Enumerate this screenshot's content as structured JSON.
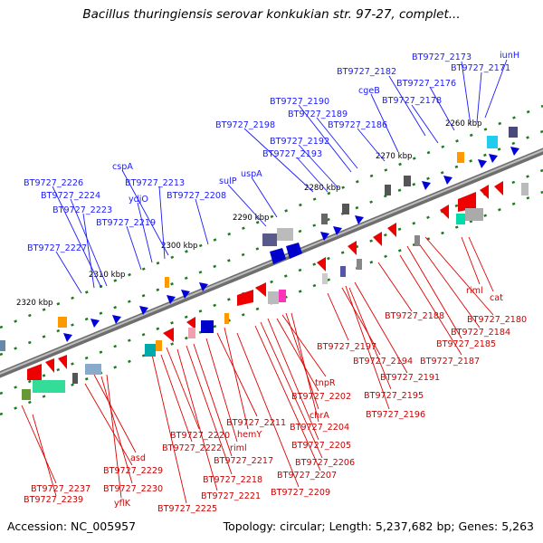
{
  "title": "Bacillus thuringiensis serovar konkukian str. 97-27, complet...",
  "accession": "Accession: NC_005957",
  "stats": "Topology: circular; Length: 5,237,682 bp; Genes: 5,263",
  "colors": {
    "upper_label": "#1a1aff",
    "lower_label": "#cc0000",
    "tick": "#1f7a1f",
    "backbone": "#7f7f7f"
  },
  "kbp_ticks": [
    "2320 kbp",
    "2310 kbp",
    "2300 kbp",
    "2290 kbp",
    "2280 kbp",
    "2270 kbp",
    "2260 kbp"
  ],
  "upper_labels": [
    "iunH",
    "BT9727_2173",
    "BT9727_2171",
    "BT9727_2182",
    "BT9727_2176",
    "cgeB",
    "BT9727_2178",
    "BT9727_2190",
    "BT9727_2189",
    "BT9727_2186",
    "BT9727_2198",
    "BT9727_2192",
    "BT9727_2193",
    "cspA",
    "uspA",
    "BT9727_2226",
    "BT9727_2213",
    "sulP",
    "BT9727_2224",
    "ydjO",
    "BT9727_2208",
    "BT9727_2223",
    "BT9727_2219",
    "BT9727_2227"
  ],
  "lower_labels": [
    "riml",
    "cat",
    "BT9727_2188",
    "BT9727_2180",
    "BT9727_2184",
    "BT9727_2185",
    "BT9727_2197",
    "BT9727_2187",
    "BT9727_2194",
    "BT9727_2191",
    "tnpR",
    "BT9727_2195",
    "BT9727_2202",
    "BT9727_2196",
    "chrA",
    "BT9727_2211",
    "BT9727_2204",
    "BT9727_2220",
    "hemY",
    "BT9727_2205",
    "BT9727_2222",
    "riml",
    "BT9727_2206",
    "asd",
    "BT9727_2217",
    "BT9727_2207",
    "BT9727_2229",
    "BT9727_2218",
    "BT9727_2237",
    "BT9727_2230",
    "BT9727_2209",
    "BT9727_2239",
    "BT9727_2221",
    "yflK",
    "BT9727_2225"
  ]
}
